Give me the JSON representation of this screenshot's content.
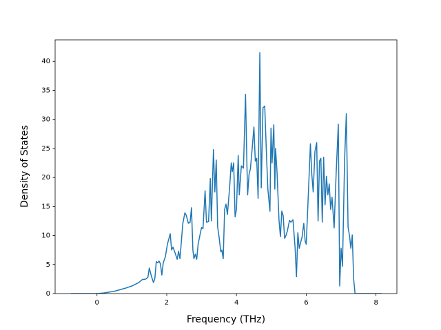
{
  "chart_data": {
    "type": "line",
    "xlabel": "Frequency (THz)",
    "ylabel": "Density of States",
    "color": "#1f77b4",
    "x": [
      -0.75,
      0.0,
      0.2,
      0.5,
      0.8,
      1.0,
      1.2,
      1.3,
      1.4,
      1.46,
      1.5,
      1.56,
      1.62,
      1.66,
      1.7,
      1.74,
      1.78,
      1.82,
      1.86,
      1.9,
      1.96,
      2.02,
      2.1,
      2.14,
      2.18,
      2.24,
      2.3,
      2.34,
      2.38,
      2.42,
      2.46,
      2.52,
      2.56,
      2.62,
      2.67,
      2.71,
      2.75,
      2.78,
      2.82,
      2.86,
      2.9,
      2.96,
      3.0,
      3.04,
      3.1,
      3.14,
      3.2,
      3.25,
      3.28,
      3.34,
      3.38,
      3.42,
      3.46,
      3.5,
      3.55,
      3.58,
      3.62,
      3.66,
      3.7,
      3.74,
      3.8,
      3.85,
      3.88,
      3.92,
      3.96,
      4.0,
      4.05,
      4.08,
      4.14,
      4.2,
      4.26,
      4.3,
      4.32,
      4.36,
      4.4,
      4.45,
      4.5,
      4.54,
      4.58,
      4.62,
      4.67,
      4.71,
      4.76,
      4.81,
      4.86,
      4.9,
      4.96,
      4.99,
      5.02,
      5.07,
      5.1,
      5.12,
      5.16,
      5.22,
      5.26,
      5.3,
      5.34,
      5.38,
      5.42,
      5.46,
      5.52,
      5.56,
      5.62,
      5.68,
      5.72,
      5.76,
      5.8,
      5.84,
      5.88,
      5.93,
      5.97,
      6.0,
      6.06,
      6.12,
      6.16,
      6.2,
      6.25,
      6.3,
      6.34,
      6.38,
      6.42,
      6.46,
      6.5,
      6.54,
      6.58,
      6.62,
      6.66,
      6.7,
      6.74,
      6.8,
      6.86,
      6.92,
      6.96,
      7.0,
      7.04,
      7.1,
      7.15,
      7.2,
      7.24,
      7.28,
      7.32,
      7.36,
      7.4,
      8.16
    ],
    "values": [
      0,
      0,
      0.1,
      0.4,
      0.9,
      1.3,
      1.9,
      2.4,
      2.5,
      2.8,
      4.4,
      3.0,
      1.9,
      2.6,
      5.5,
      5.3,
      5.6,
      5.1,
      3.2,
      5.3,
      6.3,
      8.5,
      10.3,
      7.5,
      8.0,
      7.0,
      5.9,
      7.3,
      6.0,
      9.0,
      12.0,
      13.9,
      13.5,
      12.1,
      12.3,
      14.8,
      7.5,
      6.0,
      6.8,
      5.9,
      8.5,
      10.3,
      11.4,
      11.2,
      17.7,
      12.3,
      12.4,
      19.8,
      12.5,
      24.8,
      17.5,
      23.0,
      11.5,
      9.8,
      7.2,
      7.5,
      6.0,
      14.5,
      15.4,
      13.6,
      18.0,
      22.5,
      21.0,
      22.5,
      13.2,
      14.5,
      23.8,
      17.0,
      22.0,
      21.6,
      34.3,
      22.0,
      17.0,
      20.5,
      21.5,
      25.0,
      28.7,
      22.8,
      23.3,
      16.4,
      41.5,
      18.2,
      32.0,
      32.3,
      24.0,
      18.0,
      14.2,
      28.5,
      22.5,
      29.1,
      18.0,
      25.0,
      21.3,
      12.6,
      9.8,
      14.2,
      13.4,
      9.5,
      10.0,
      10.8,
      12.6,
      12.3,
      12.7,
      8.0,
      2.9,
      10.5,
      7.8,
      8.8,
      9.7,
      12.1,
      9.0,
      8.5,
      17.0,
      25.8,
      20.5,
      17.5,
      24.5,
      26.0,
      12.5,
      22.8,
      23.3,
      12.3,
      23.5,
      15.3,
      20.2,
      17.0,
      18.9,
      14.5,
      16.6,
      11.3,
      21.0,
      29.2,
      1.3,
      7.8,
      4.7,
      23.0,
      31.0,
      11.4,
      10.0,
      7.8,
      10.1,
      2.5,
      0,
      0
    ],
    "xlim": [
      -1.2,
      8.6
    ],
    "xticks": [
      0,
      2,
      4,
      6,
      8
    ],
    "ylim": [
      0,
      43.7
    ],
    "yticks": [
      0,
      5,
      10,
      15,
      20,
      25,
      30,
      35,
      40
    ]
  }
}
